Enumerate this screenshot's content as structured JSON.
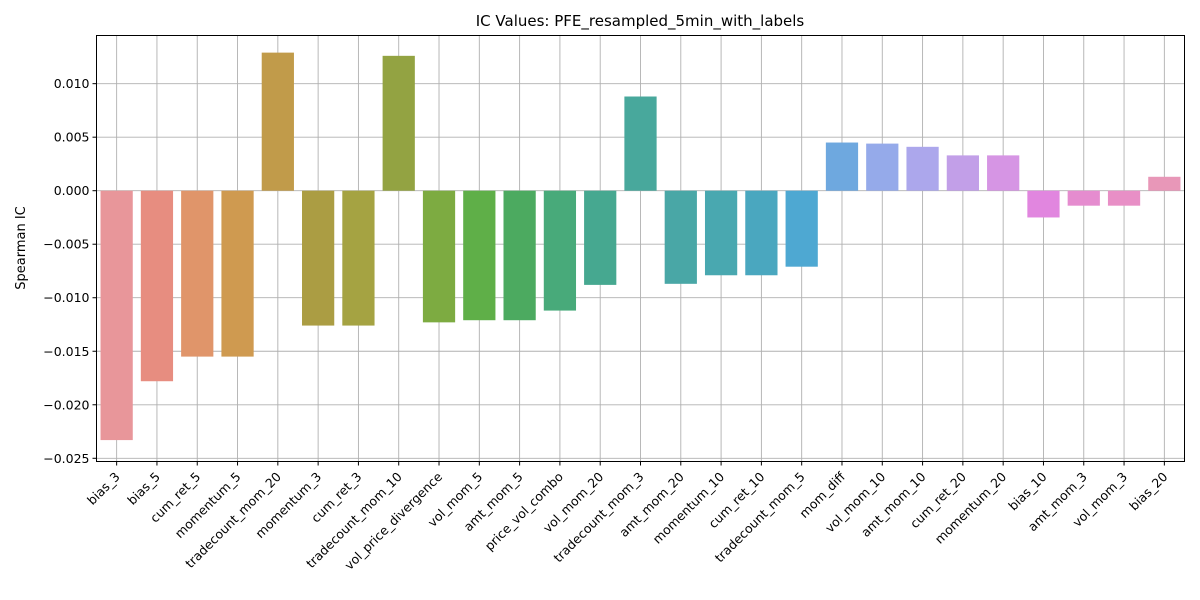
{
  "chart_data": {
    "type": "bar",
    "title": "IC Values: PFE_resampled_5min_with_labels",
    "xlabel": "",
    "ylabel": "Spearman IC",
    "ylim": [
      -0.0253,
      0.0145
    ],
    "yticks": [
      -0.025,
      -0.02,
      -0.015,
      -0.01,
      -0.005,
      0.0,
      0.005,
      0.01
    ],
    "ytick_labels": [
      "−0.025",
      "−0.020",
      "−0.015",
      "−0.010",
      "−0.005",
      "0.000",
      "0.005",
      "0.010"
    ],
    "grid": true,
    "categories": [
      "bias_3",
      "bias_5",
      "cum_ret_5",
      "momentum_5",
      "tradecount_mom_20",
      "momentum_3",
      "cum_ret_3",
      "tradecount_mom_10",
      "vol_price_divergence",
      "vol_mom_5",
      "amt_mom_5",
      "price_vol_combo",
      "vol_mom_20",
      "tradecount_mom_3",
      "amt_mom_20",
      "momentum_10",
      "cum_ret_10",
      "tradecount_mom_5",
      "mom_diff",
      "vol_mom_10",
      "amt_mom_10",
      "cum_ret_20",
      "momentum_20",
      "bias_10",
      "amt_mom_3",
      "vol_mom_3",
      "bias_20"
    ],
    "values": [
      -0.0233,
      -0.0178,
      -0.0155,
      -0.0155,
      0.0129,
      -0.0126,
      -0.0126,
      0.0126,
      -0.0123,
      -0.0121,
      -0.0121,
      -0.0112,
      -0.0088,
      0.0088,
      -0.0087,
      -0.0079,
      -0.0079,
      -0.0071,
      0.0045,
      0.0044,
      0.0041,
      0.0033,
      0.0033,
      -0.0025,
      -0.0014,
      -0.0014,
      0.0013
    ],
    "colors": [
      "#e8969a",
      "#e78d80",
      "#e0956a",
      "#cf9a50",
      "#c19b4a",
      "#ab9d43",
      "#a5a342",
      "#93a342",
      "#7dab41",
      "#5faf48",
      "#4caa60",
      "#48aa7a",
      "#46a890",
      "#48a89c",
      "#49a7a6",
      "#49a8b0",
      "#4aa7bf",
      "#4ea8d2",
      "#6ea8df",
      "#95aaea",
      "#aca7ec",
      "#c29fe8",
      "#d695e4",
      "#e186df",
      "#e58ccf",
      "#e88fc6",
      "#e897b8"
    ]
  }
}
